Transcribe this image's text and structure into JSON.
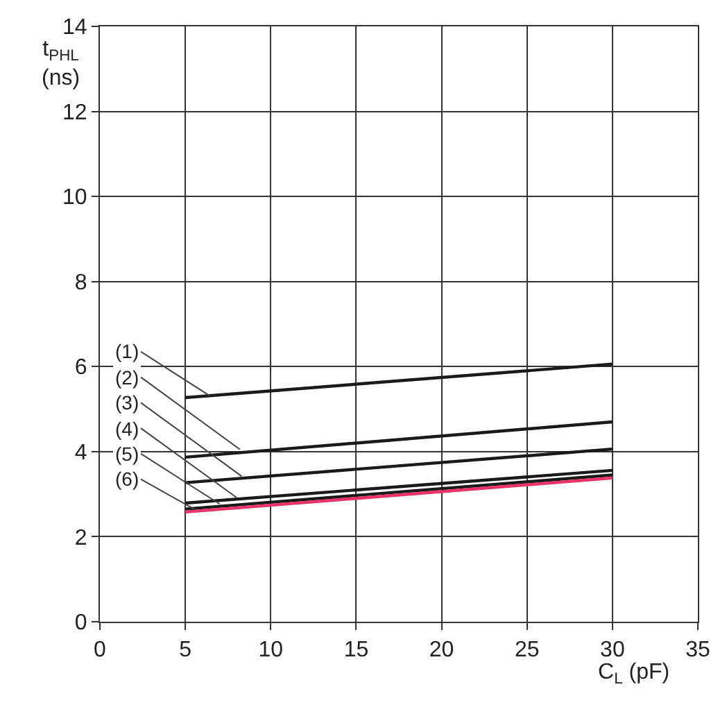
{
  "chart_data": {
    "type": "line",
    "xlabel": "C$_{L}$ (pF)",
    "ylabel": "t$_{PHL}$\n(ns)",
    "x": [
      5,
      30
    ],
    "xlim": [
      0,
      35
    ],
    "xticks": [
      0,
      5,
      10,
      15,
      20,
      25,
      30,
      35
    ],
    "ylim": [
      0,
      14
    ],
    "yticks": [
      0,
      2,
      4,
      6,
      8,
      10,
      12,
      14
    ],
    "grid": true,
    "marker": "none",
    "line_style": "solid",
    "series": [
      {
        "color": "#1a1a1a",
        "values": [
          5.27,
          6.06
        ]
      },
      {
        "color": "#1a1a1a",
        "values": [
          3.87,
          4.7
        ]
      },
      {
        "color": "#1a1a1a",
        "values": [
          3.27,
          4.06
        ]
      },
      {
        "color": "#1a1a1a",
        "values": [
          2.79,
          3.56
        ]
      },
      {
        "color": "#1a1a1a",
        "values": [
          2.65,
          3.45
        ]
      },
      {
        "color": "#e8336b",
        "values": [
          2.58,
          3.38
        ]
      }
    ],
    "annotations": [
      {
        "text": "(1)",
        "x": 6.4,
        "y": 5.32
      },
      {
        "text": "(2)",
        "x": 8.2,
        "y": 4.05
      },
      {
        "text": "(3)",
        "x": 8.3,
        "y": 3.42
      },
      {
        "text": "(4)",
        "x": 8.0,
        "y": 2.92
      },
      {
        "text": "(5)",
        "x": 7.0,
        "y": 2.77
      },
      {
        "text": "(6)",
        "x": 5.6,
        "y": 2.63
      }
    ]
  }
}
